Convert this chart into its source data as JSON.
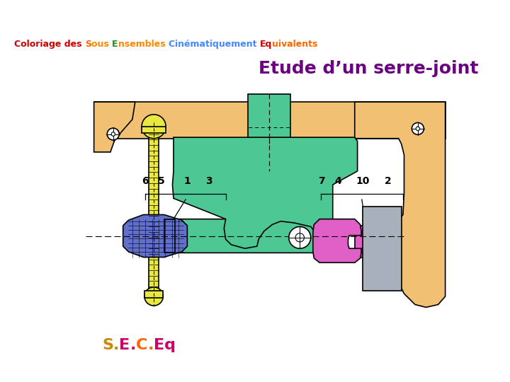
{
  "title": "Etude d’un serre-joint",
  "title_color": "#6B0080",
  "title_fontsize": 18,
  "bg_color": "#FFFFFF",
  "color_orange": "#F2C073",
  "color_green": "#4DC894",
  "color_yellow": "#E8E840",
  "color_blue": "#6070CC",
  "color_magenta": "#E060C8",
  "color_gray": "#A8B0BC",
  "color_black": "#000000",
  "subtitle_parts": [
    [
      "Coloriage des ",
      "#CC0000"
    ],
    [
      "S",
      "#FF6600"
    ],
    [
      "ous ",
      "#FF8800"
    ],
    [
      "E",
      "#228B22"
    ],
    [
      "nsembles ",
      "#FF8800"
    ],
    [
      "C",
      "#4488FF"
    ],
    [
      "inématiquement ",
      "#4488FF"
    ],
    [
      "Eq",
      "#CC0000"
    ],
    [
      "uivalents",
      "#FF6600"
    ]
  ],
  "sec_parts": [
    [
      "S",
      "#CC8800"
    ],
    [
      ".",
      "#CC8800"
    ],
    [
      "E",
      "#CC0066"
    ],
    [
      ".",
      "#CC0066"
    ],
    [
      "C",
      "#FF6600"
    ],
    [
      ".",
      "#FF6600"
    ],
    [
      "Eq",
      "#CC0066"
    ]
  ]
}
